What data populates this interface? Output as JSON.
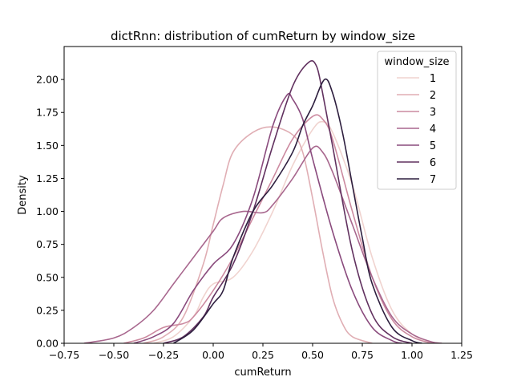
{
  "chart_data": {
    "type": "line",
    "title": "dictRnn: distribution of cumReturn by window_size",
    "xlabel": "cumReturn",
    "ylabel": "Density",
    "xlim": [
      -0.75,
      1.25
    ],
    "ylim": [
      0,
      2.25
    ],
    "x_ticks": [
      -0.75,
      -0.5,
      -0.25,
      0.0,
      0.25,
      0.5,
      0.75,
      1.0,
      1.25
    ],
    "x_tick_labels": [
      "−0.75",
      "−0.50",
      "−0.25",
      "0.00",
      "0.25",
      "0.50",
      "0.75",
      "1.00",
      "1.25"
    ],
    "y_ticks": [
      0.0,
      0.25,
      0.5,
      0.75,
      1.0,
      1.25,
      1.5,
      1.75,
      2.0
    ],
    "y_tick_labels": [
      "0.00",
      "0.25",
      "0.50",
      "0.75",
      "1.00",
      "1.25",
      "1.50",
      "1.75",
      "2.00"
    ],
    "grid": false,
    "legend": {
      "title": "window_size",
      "placement": "top-right"
    },
    "series": [
      {
        "name": "1",
        "color": "#f0d3cf",
        "points": [
          [
            -0.3,
            0
          ],
          [
            -0.2,
            0.05
          ],
          [
            -0.1,
            0.2
          ],
          [
            -0.05,
            0.35
          ],
          [
            0.0,
            0.45
          ],
          [
            0.1,
            0.5
          ],
          [
            0.2,
            0.7
          ],
          [
            0.3,
            1.0
          ],
          [
            0.4,
            1.35
          ],
          [
            0.5,
            1.62
          ],
          [
            0.55,
            1.68
          ],
          [
            0.6,
            1.6
          ],
          [
            0.7,
            1.2
          ],
          [
            0.8,
            0.65
          ],
          [
            0.9,
            0.25
          ],
          [
            1.0,
            0.07
          ],
          [
            1.1,
            0.01
          ],
          [
            1.15,
            0
          ]
        ]
      },
      {
        "name": "2",
        "color": "#e0aeb4",
        "points": [
          [
            -0.35,
            0
          ],
          [
            -0.25,
            0.05
          ],
          [
            -0.15,
            0.2
          ],
          [
            -0.05,
            0.6
          ],
          [
            0.0,
            0.9
          ],
          [
            0.05,
            1.2
          ],
          [
            0.1,
            1.45
          ],
          [
            0.2,
            1.6
          ],
          [
            0.3,
            1.64
          ],
          [
            0.4,
            1.58
          ],
          [
            0.45,
            1.45
          ],
          [
            0.5,
            1.1
          ],
          [
            0.55,
            0.7
          ],
          [
            0.6,
            0.35
          ],
          [
            0.65,
            0.15
          ],
          [
            0.7,
            0.05
          ],
          [
            0.8,
            0
          ]
        ]
      },
      {
        "name": "3",
        "color": "#cc8aa0",
        "points": [
          [
            -0.45,
            0
          ],
          [
            -0.35,
            0.04
          ],
          [
            -0.25,
            0.12
          ],
          [
            -0.15,
            0.15
          ],
          [
            -0.1,
            0.2
          ],
          [
            0.0,
            0.4
          ],
          [
            0.1,
            0.65
          ],
          [
            0.2,
            0.95
          ],
          [
            0.3,
            1.25
          ],
          [
            0.4,
            1.55
          ],
          [
            0.5,
            1.72
          ],
          [
            0.55,
            1.7
          ],
          [
            0.6,
            1.55
          ],
          [
            0.7,
            1.0
          ],
          [
            0.8,
            0.5
          ],
          [
            0.9,
            0.18
          ],
          [
            1.0,
            0.05
          ],
          [
            1.1,
            0
          ]
        ]
      },
      {
        "name": "4",
        "color": "#a8678e",
        "points": [
          [
            -0.65,
            0
          ],
          [
            -0.5,
            0.04
          ],
          [
            -0.4,
            0.12
          ],
          [
            -0.3,
            0.25
          ],
          [
            -0.2,
            0.45
          ],
          [
            -0.1,
            0.65
          ],
          [
            0.0,
            0.85
          ],
          [
            0.05,
            0.95
          ],
          [
            0.15,
            1.0
          ],
          [
            0.25,
            0.99
          ],
          [
            0.3,
            1.05
          ],
          [
            0.4,
            1.25
          ],
          [
            0.5,
            1.48
          ],
          [
            0.55,
            1.45
          ],
          [
            0.6,
            1.3
          ],
          [
            0.7,
            0.9
          ],
          [
            0.8,
            0.5
          ],
          [
            0.9,
            0.2
          ],
          [
            1.0,
            0.07
          ],
          [
            1.1,
            0.01
          ],
          [
            1.15,
            0
          ]
        ]
      },
      {
        "name": "5",
        "color": "#8a4b7d",
        "points": [
          [
            -0.4,
            0
          ],
          [
            -0.3,
            0.05
          ],
          [
            -0.2,
            0.15
          ],
          [
            -0.1,
            0.4
          ],
          [
            0.0,
            0.6
          ],
          [
            0.1,
            0.75
          ],
          [
            0.2,
            1.1
          ],
          [
            0.3,
            1.65
          ],
          [
            0.37,
            1.88
          ],
          [
            0.4,
            1.85
          ],
          [
            0.45,
            1.7
          ],
          [
            0.5,
            1.4
          ],
          [
            0.6,
            0.85
          ],
          [
            0.7,
            0.4
          ],
          [
            0.8,
            0.12
          ],
          [
            0.9,
            0.02
          ],
          [
            0.95,
            0
          ]
        ]
      },
      {
        "name": "6",
        "color": "#61315f",
        "points": [
          [
            -0.25,
            0
          ],
          [
            -0.15,
            0.05
          ],
          [
            -0.05,
            0.2
          ],
          [
            0.0,
            0.35
          ],
          [
            0.1,
            0.6
          ],
          [
            0.2,
            1.0
          ],
          [
            0.3,
            1.5
          ],
          [
            0.4,
            1.95
          ],
          [
            0.48,
            2.13
          ],
          [
            0.52,
            2.1
          ],
          [
            0.55,
            1.9
          ],
          [
            0.6,
            1.5
          ],
          [
            0.7,
            0.7
          ],
          [
            0.8,
            0.22
          ],
          [
            0.9,
            0.05
          ],
          [
            1.0,
            0
          ]
        ]
      },
      {
        "name": "7",
        "color": "#2d1e3e",
        "points": [
          [
            -0.2,
            0
          ],
          [
            -0.1,
            0.1
          ],
          [
            0.0,
            0.3
          ],
          [
            0.05,
            0.4
          ],
          [
            0.1,
            0.65
          ],
          [
            0.2,
            1.0
          ],
          [
            0.3,
            1.2
          ],
          [
            0.4,
            1.45
          ],
          [
            0.45,
            1.65
          ],
          [
            0.5,
            1.8
          ],
          [
            0.56,
            2.0
          ],
          [
            0.6,
            1.9
          ],
          [
            0.65,
            1.6
          ],
          [
            0.7,
            1.2
          ],
          [
            0.75,
            0.8
          ],
          [
            0.8,
            0.45
          ],
          [
            0.9,
            0.12
          ],
          [
            1.0,
            0.02
          ],
          [
            1.05,
            0
          ]
        ]
      }
    ]
  }
}
